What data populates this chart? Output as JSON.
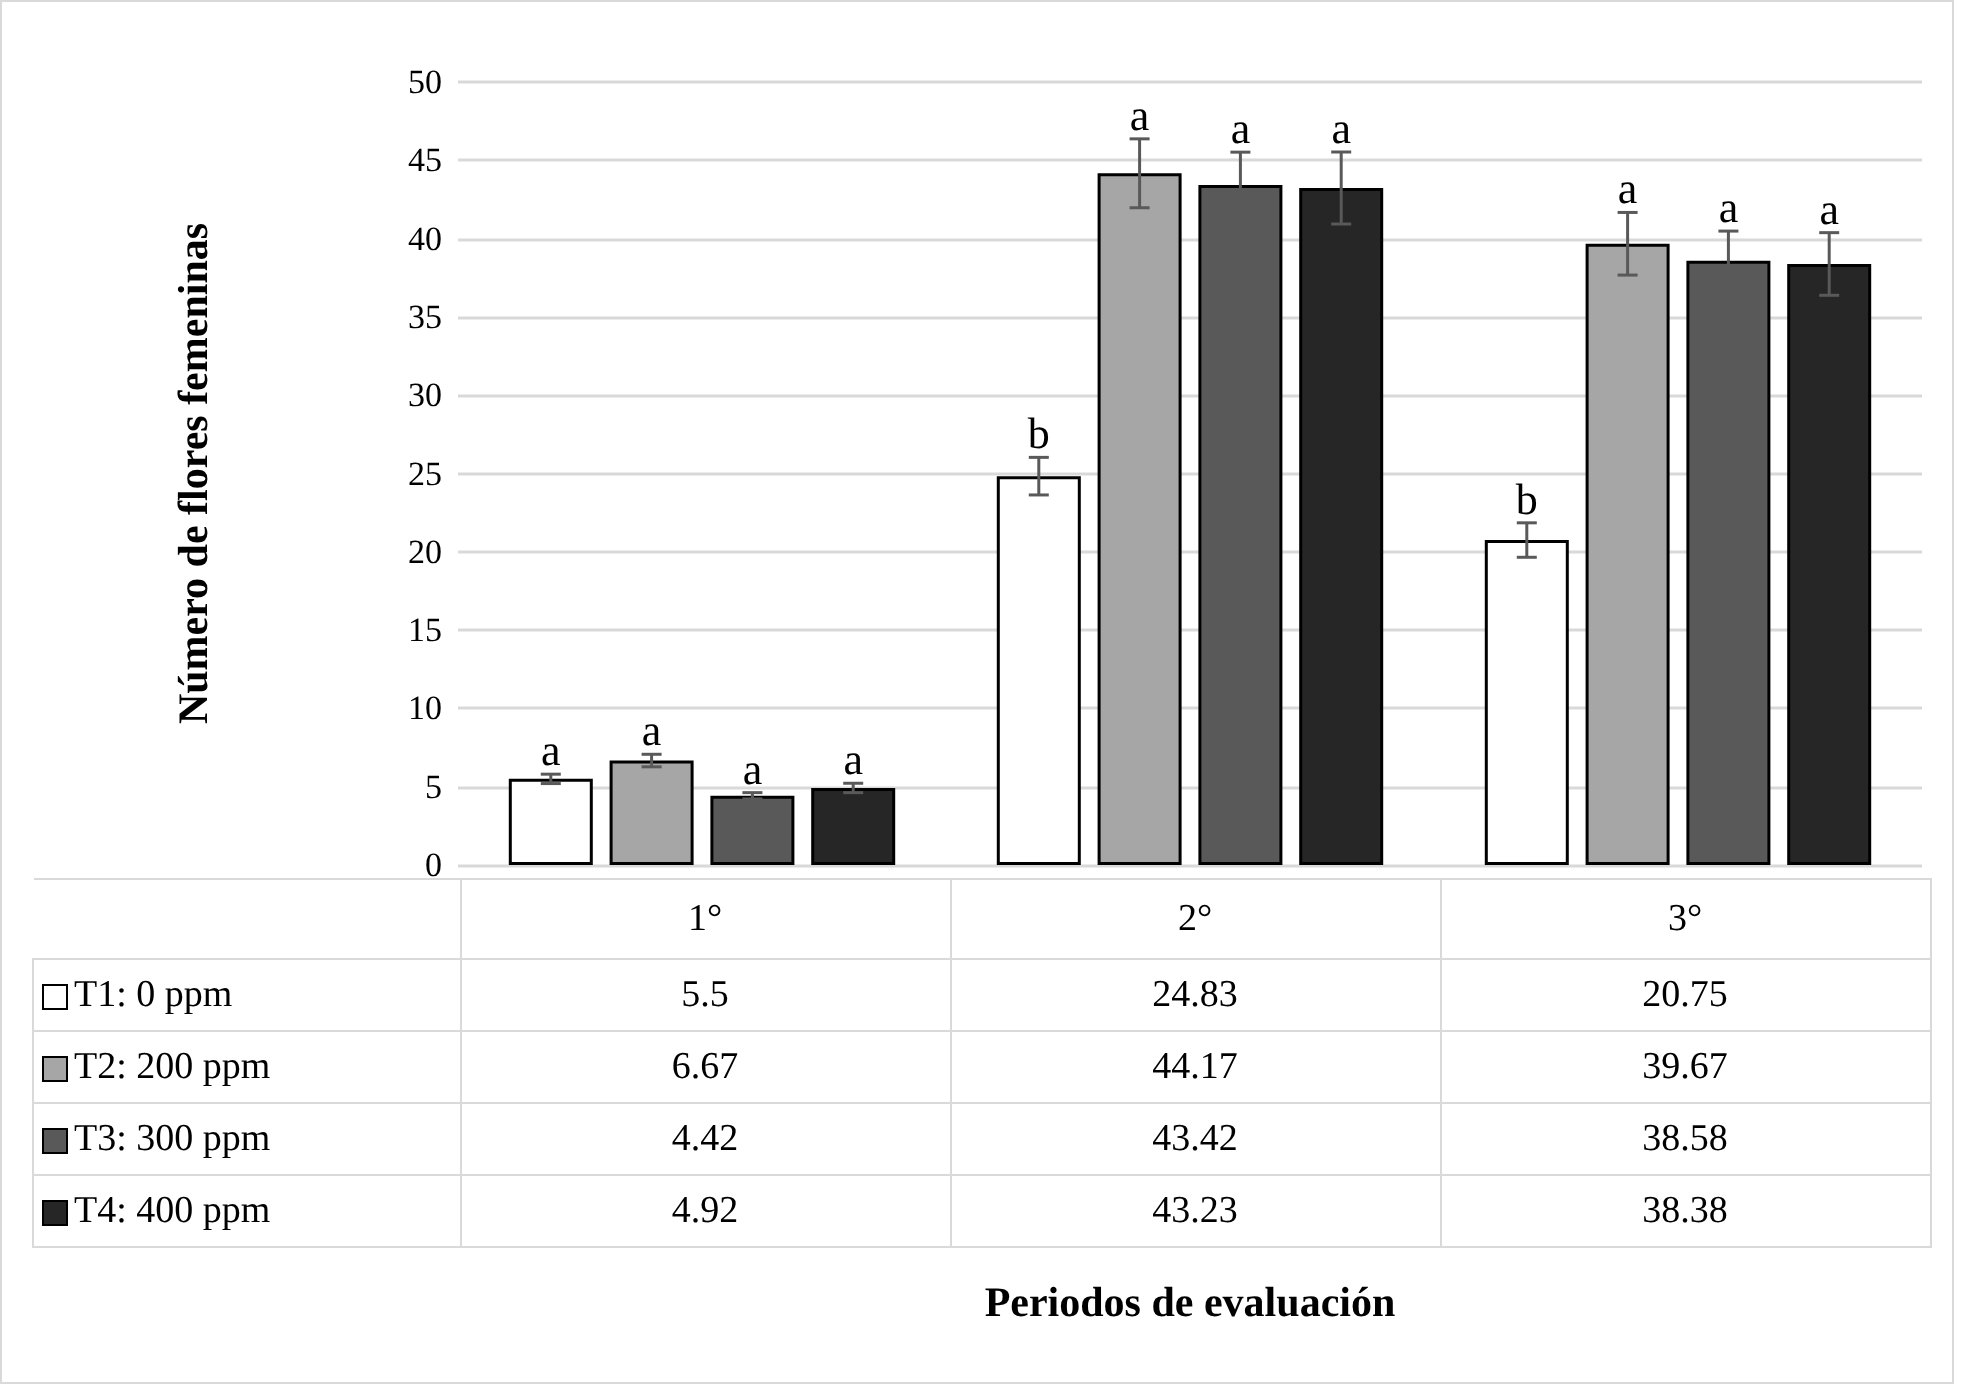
{
  "chart_data": {
    "type": "bar",
    "ylabel": "Número de flores femeninas",
    "categories": [
      "1°",
      "2°",
      "3°"
    ],
    "series": [
      {
        "name": "T1: 0 ppm",
        "color": "#ffffff",
        "values": [
          5.5,
          24.83,
          20.75
        ],
        "errors": [
          0.3,
          1.2,
          1.1
        ]
      },
      {
        "name": "T2: 200 ppm",
        "color": "#a6a6a6",
        "values": [
          6.67,
          44.17,
          39.67
        ],
        "errors": [
          0.4,
          2.2,
          2.0
        ]
      },
      {
        "name": "T3: 300 ppm",
        "color": "#595959",
        "values": [
          4.42,
          43.42,
          38.58
        ],
        "errors": [
          0.2,
          2.1,
          1.9
        ]
      },
      {
        "name": "T4: 400 ppm",
        "color": "#262626",
        "values": [
          4.92,
          43.23,
          38.38
        ],
        "errors": [
          0.3,
          2.3,
          2.0
        ]
      }
    ],
    "annotations": [
      "a",
      "a",
      "a",
      "a",
      "b",
      "a",
      "a",
      "a",
      "b",
      "a",
      "a",
      "a",
      "Periodos de evaluación"
    ],
    "ylim": [
      0,
      50
    ],
    "yticks": [
      0,
      5,
      10,
      15,
      20,
      25,
      30,
      35,
      40,
      45,
      50
    ],
    "grid": "y",
    "legend": "bottom",
    "data_labels": true
  }
}
